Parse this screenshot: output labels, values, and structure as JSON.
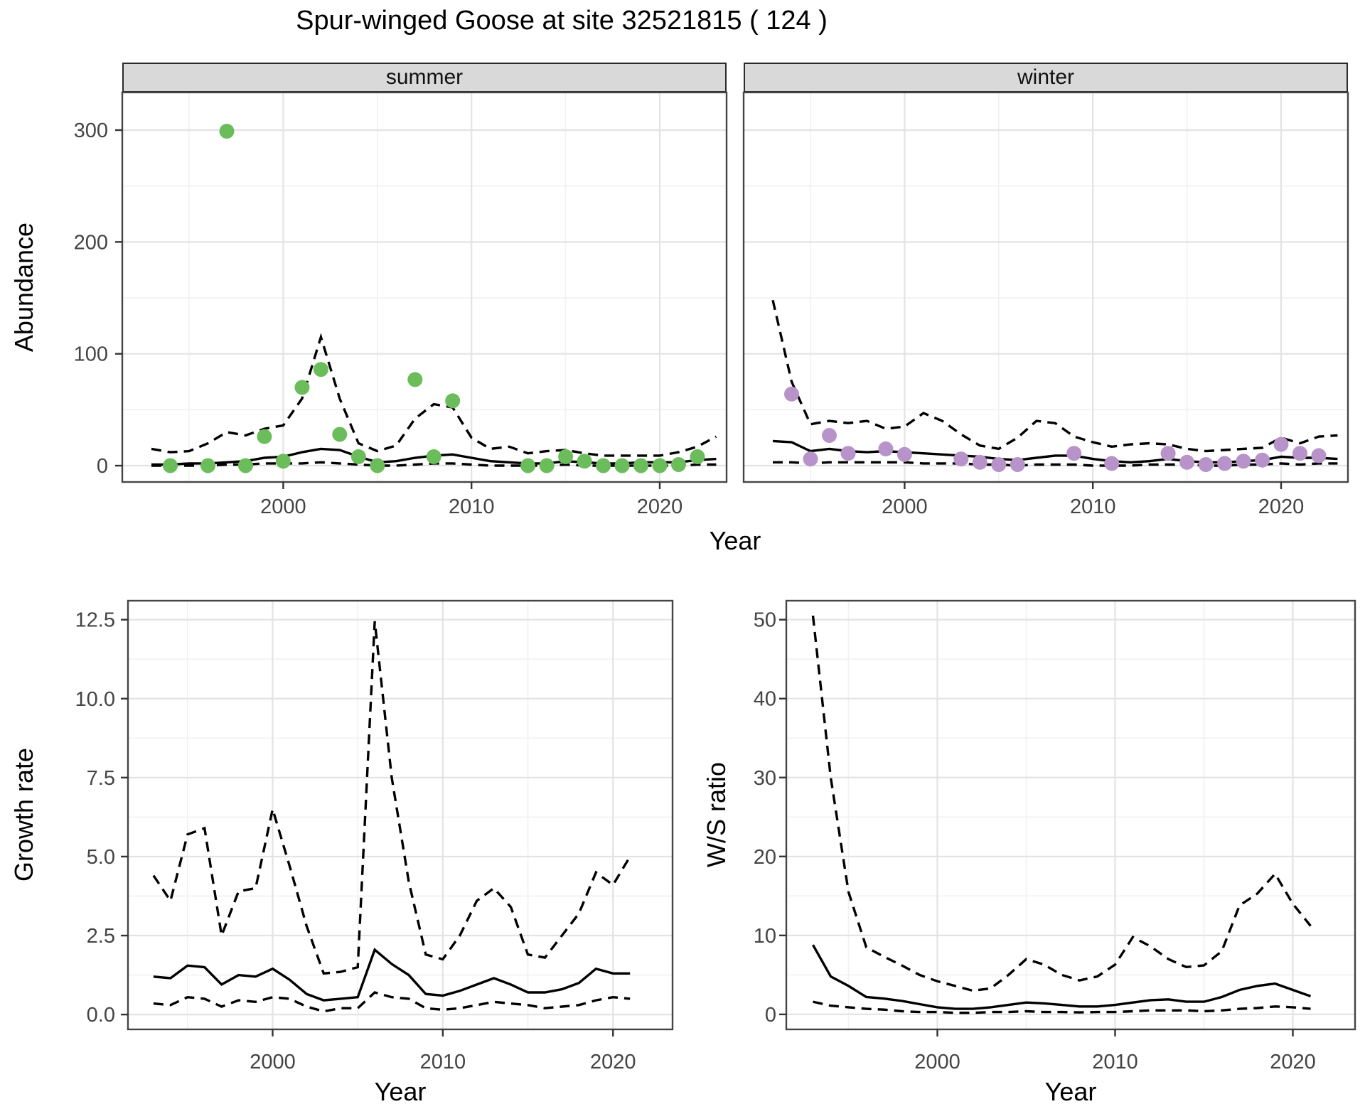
{
  "title": "Spur-winged Goose at site 32521815 ( 124 )",
  "facets": [
    "summer",
    "winter"
  ],
  "labels": {
    "y_abundance": "Abundance",
    "y_growth": "Growth rate",
    "y_ws": "W/S ratio",
    "x": "Year"
  },
  "colors": {
    "summer_point": "#6bbd5b",
    "winter_point": "#b793c9",
    "line": "#000000",
    "strip_bg": "#d9d9d9",
    "grid_major": "#e3e3e3",
    "grid_minor": "#f1f1f1",
    "panel_border": "#454545",
    "tick_mark": "#333333",
    "tick_text": "#444444"
  },
  "chart_data": [
    {
      "id": "abundance-summer",
      "type": "scatter",
      "title": "summer",
      "xlabel": "Year",
      "ylabel": "Abundance",
      "x_range": [
        1991.45,
        2023.55
      ],
      "y_range": [
        -14.6,
        333.7
      ],
      "x_ticks": {
        "major": [
          2000,
          2010,
          2020
        ],
        "minor": [
          1995,
          2005,
          2015
        ],
        "labels": [
          "2000",
          "2010",
          "2020"
        ]
      },
      "y_ticks": {
        "major": [
          0,
          100,
          200,
          300
        ],
        "minor": [
          50,
          150,
          250
        ],
        "labels": [
          "0",
          "100",
          "200",
          "300"
        ]
      },
      "grid": "on",
      "series_years": [
        1993,
        1994,
        1995,
        1996,
        1997,
        1998,
        1999,
        2000,
        2001,
        2002,
        2003,
        2004,
        2005,
        2006,
        2007,
        2008,
        2009,
        2010,
        2011,
        2012,
        2013,
        2014,
        2015,
        2016,
        2017,
        2018,
        2019,
        2020,
        2021,
        2022,
        2023
      ],
      "series": [
        {
          "name": "mean",
          "style": "solid",
          "values": [
            1,
            1,
            2,
            2,
            3,
            4,
            7,
            8,
            12,
            15,
            14,
            8,
            3,
            4,
            7,
            9,
            10,
            7,
            4,
            3,
            2,
            2,
            4,
            3,
            2,
            2,
            3,
            3,
            3,
            5,
            6
          ]
        },
        {
          "name": "ci_upper_97.5",
          "style": "dashed",
          "values": [
            15,
            12,
            13,
            20,
            30,
            27,
            33,
            36,
            60,
            115,
            60,
            20,
            13,
            18,
            42,
            55,
            52,
            25,
            15,
            17,
            11,
            13,
            14,
            11,
            9,
            9,
            9,
            9,
            12,
            17,
            26
          ]
        },
        {
          "name": "ci_lower_2.5",
          "style": "dashed",
          "values": [
            0,
            0,
            0,
            0,
            1,
            1,
            2,
            2,
            2,
            3,
            2,
            1,
            0,
            0,
            1,
            2,
            2,
            1,
            0,
            0,
            0,
            0,
            1,
            0,
            0,
            0,
            0,
            0,
            0,
            1,
            1
          ]
        }
      ],
      "points": {
        "name": "observed-counts-summer",
        "color_key": "summer_point",
        "years": [
          1994,
          1996,
          1997,
          1998,
          1999,
          2000,
          2001,
          2002,
          2003,
          2004,
          2005,
          2007,
          2008,
          2009,
          2013,
          2014,
          2015,
          2016,
          2017,
          2018,
          2019,
          2020,
          2021,
          2022
        ],
        "values": [
          0,
          0,
          299,
          0,
          26,
          4,
          70,
          86,
          28,
          8,
          0,
          77,
          8,
          58,
          0,
          0,
          8,
          4,
          0,
          0,
          0,
          0,
          1,
          8
        ]
      }
    },
    {
      "id": "abundance-winter",
      "type": "scatter",
      "title": "winter",
      "xlabel": "Year",
      "ylabel": "Abundance",
      "x_range": [
        1991.45,
        2023.55
      ],
      "y_range": [
        -14.6,
        333.7
      ],
      "x_ticks": {
        "major": [
          2000,
          2010,
          2020
        ],
        "minor": [
          1995,
          2005,
          2015
        ],
        "labels": [
          "2000",
          "2010",
          "2020"
        ]
      },
      "y_ticks": {
        "major": [
          0,
          100,
          200,
          300
        ],
        "minor": [
          50,
          150,
          250
        ],
        "labels": []
      },
      "grid": "on",
      "series_years": [
        1993,
        1994,
        1995,
        1996,
        1997,
        1998,
        1999,
        2000,
        2001,
        2002,
        2003,
        2004,
        2005,
        2006,
        2007,
        2008,
        2009,
        2010,
        2011,
        2012,
        2013,
        2014,
        2015,
        2016,
        2017,
        2018,
        2019,
        2020,
        2021,
        2022,
        2023
      ],
      "series": [
        {
          "name": "mean",
          "style": "solid",
          "values": [
            22,
            21,
            13,
            15,
            13,
            12,
            13,
            12,
            11,
            10,
            9,
            8,
            6,
            5,
            7,
            9,
            9,
            6,
            4,
            3,
            4,
            6,
            4,
            3,
            3,
            4,
            5,
            8,
            7,
            7,
            6
          ]
        },
        {
          "name": "ci_upper_97.5",
          "style": "dashed",
          "values": [
            148,
            75,
            37,
            40,
            38,
            40,
            33,
            35,
            47,
            40,
            28,
            18,
            15,
            25,
            40,
            38,
            26,
            21,
            17,
            19,
            20,
            19,
            15,
            13,
            14,
            15,
            16,
            25,
            20,
            26,
            27
          ]
        },
        {
          "name": "ci_lower_2.5",
          "style": "dashed",
          "values": [
            3,
            3,
            2,
            3,
            3,
            3,
            3,
            3,
            2,
            2,
            2,
            1,
            1,
            0,
            1,
            1,
            1,
            0,
            0,
            0,
            1,
            1,
            1,
            0,
            0,
            1,
            1,
            2,
            1,
            2,
            2
          ]
        }
      ],
      "points": {
        "name": "observed-counts-winter",
        "color_key": "winter_point",
        "years": [
          1994,
          1995,
          1996,
          1997,
          1999,
          2000,
          2003,
          2004,
          2005,
          2006,
          2009,
          2011,
          2014,
          2015,
          2016,
          2017,
          2018,
          2019,
          2020,
          2021,
          2022
        ],
        "values": [
          64,
          6,
          27,
          11,
          15,
          10,
          6,
          3,
          1,
          1,
          11,
          2,
          11,
          3,
          1,
          2,
          4,
          5,
          19,
          11,
          9
        ]
      }
    },
    {
      "id": "growth-rate",
      "type": "line",
      "title": "",
      "xlabel": "Year",
      "ylabel": "Growth rate",
      "x_range": [
        1991.5,
        2023.5
      ],
      "y_range": [
        -0.47,
        13.1
      ],
      "x_ticks": {
        "major": [
          2000,
          2010,
          2020
        ],
        "minor": [
          1995,
          2005,
          2015
        ],
        "labels": [
          "2000",
          "2010",
          "2020"
        ]
      },
      "y_ticks": {
        "major": [
          0,
          2.5,
          5,
          7.5,
          10,
          12.5
        ],
        "minor": [
          1.25,
          3.75,
          6.25,
          8.75,
          11.25
        ],
        "labels": [
          "0.0",
          "2.5",
          "5.0",
          "7.5",
          "10.0",
          "12.5"
        ]
      },
      "grid": "on",
      "series_years": [
        1993,
        1994,
        1995,
        1996,
        1997,
        1998,
        1999,
        2000,
        2001,
        2002,
        2003,
        2004,
        2005,
        2006,
        2007,
        2008,
        2009,
        2010,
        2011,
        2012,
        2013,
        2014,
        2015,
        2016,
        2017,
        2018,
        2019,
        2020,
        2021
      ],
      "series": [
        {
          "name": "mean",
          "style": "solid",
          "values": [
            1.2,
            1.15,
            1.55,
            1.5,
            0.95,
            1.25,
            1.2,
            1.45,
            1.1,
            0.65,
            0.45,
            0.5,
            0.55,
            2.05,
            1.6,
            1.25,
            0.65,
            0.6,
            0.75,
            0.95,
            1.15,
            0.95,
            0.7,
            0.7,
            0.8,
            1.0,
            1.45,
            1.3,
            1.3
          ]
        },
        {
          "name": "ci_upper_97.5",
          "style": "dashed",
          "values": [
            4.4,
            3.6,
            5.7,
            5.9,
            2.5,
            3.9,
            4.0,
            6.5,
            4.7,
            2.8,
            1.3,
            1.35,
            1.5,
            12.45,
            7.5,
            4.2,
            1.9,
            1.75,
            2.5,
            3.6,
            4.0,
            3.4,
            1.9,
            1.8,
            2.5,
            3.2,
            4.5,
            4.1,
            5.0
          ]
        },
        {
          "name": "ci_lower_2.5",
          "style": "dashed",
          "values": [
            0.35,
            0.3,
            0.55,
            0.5,
            0.25,
            0.45,
            0.4,
            0.55,
            0.5,
            0.25,
            0.1,
            0.2,
            0.2,
            0.7,
            0.55,
            0.5,
            0.2,
            0.15,
            0.2,
            0.3,
            0.4,
            0.35,
            0.3,
            0.2,
            0.25,
            0.3,
            0.45,
            0.55,
            0.5
          ]
        }
      ],
      "points": null
    },
    {
      "id": "ws-ratio",
      "type": "line",
      "title": "",
      "xlabel": "Year",
      "ylabel": "W/S ratio",
      "x_range": [
        1991.5,
        2023.5
      ],
      "y_range": [
        -1.9,
        52.4
      ],
      "x_ticks": {
        "major": [
          2000,
          2010,
          2020
        ],
        "minor": [
          1995,
          2005,
          2015
        ],
        "labels": [
          "2000",
          "2010",
          "2020"
        ]
      },
      "y_ticks": {
        "major": [
          0,
          10,
          20,
          30,
          40,
          50
        ],
        "minor": [
          5,
          15,
          25,
          35,
          45
        ],
        "labels": [
          "0",
          "10",
          "20",
          "30",
          "40",
          "50"
        ]
      },
      "grid": "on",
      "series_years": [
        1993,
        1994,
        1995,
        1996,
        1997,
        1998,
        1999,
        2000,
        2001,
        2002,
        2003,
        2004,
        2005,
        2006,
        2007,
        2008,
        2009,
        2010,
        2011,
        2012,
        2013,
        2014,
        2015,
        2016,
        2017,
        2018,
        2019,
        2020,
        2021
      ],
      "series": [
        {
          "name": "mean",
          "style": "solid",
          "values": [
            8.8,
            4.8,
            3.6,
            2.2,
            2.0,
            1.7,
            1.3,
            0.9,
            0.7,
            0.7,
            0.9,
            1.2,
            1.5,
            1.4,
            1.2,
            1.0,
            1.0,
            1.2,
            1.5,
            1.8,
            1.9,
            1.6,
            1.6,
            2.2,
            3.1,
            3.6,
            3.9,
            3.1,
            2.3
          ]
        },
        {
          "name": "ci_upper_97.5",
          "style": "dashed",
          "values": [
            50.5,
            30,
            15.5,
            8.5,
            7.3,
            6.2,
            5.0,
            4.2,
            3.6,
            3.0,
            3.3,
            5.0,
            7.0,
            6.3,
            5.0,
            4.3,
            4.8,
            6.3,
            9.8,
            8.6,
            7.0,
            6.0,
            6.2,
            8.0,
            13.8,
            15.3,
            17.8,
            14.0,
            11.2
          ]
        },
        {
          "name": "ci_lower_2.5",
          "style": "dashed",
          "values": [
            1.6,
            1.1,
            0.9,
            0.7,
            0.6,
            0.4,
            0.3,
            0.3,
            0.2,
            0.2,
            0.3,
            0.3,
            0.4,
            0.3,
            0.3,
            0.25,
            0.3,
            0.3,
            0.4,
            0.5,
            0.5,
            0.5,
            0.4,
            0.5,
            0.7,
            0.8,
            1.0,
            0.9,
            0.7
          ]
        }
      ],
      "points": null
    }
  ]
}
